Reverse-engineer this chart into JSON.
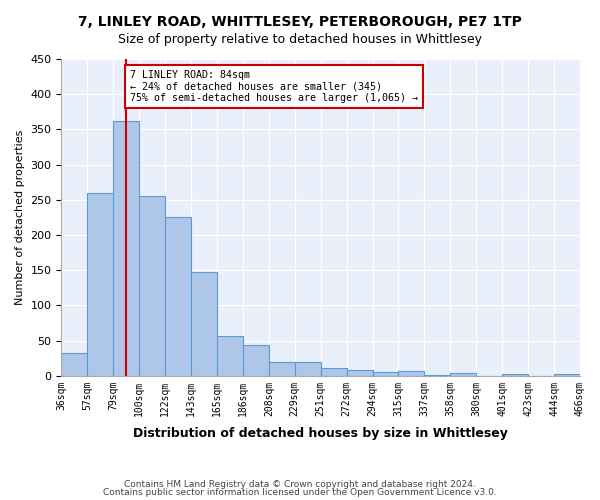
{
  "title1": "7, LINLEY ROAD, WHITTLESEY, PETERBOROUGH, PE7 1TP",
  "title2": "Size of property relative to detached houses in Whittlesey",
  "xlabel": "Distribution of detached houses by size in Whittlesey",
  "ylabel": "Number of detached properties",
  "bin_labels": [
    "36sqm",
    "57sqm",
    "79sqm",
    "100sqm",
    "122sqm",
    "143sqm",
    "165sqm",
    "186sqm",
    "208sqm",
    "229sqm",
    "251sqm",
    "272sqm",
    "294sqm",
    "315sqm",
    "337sqm",
    "358sqm",
    "380sqm",
    "401sqm",
    "423sqm",
    "444sqm",
    "466sqm"
  ],
  "bar_values": [
    32,
    260,
    362,
    255,
    225,
    148,
    57,
    44,
    19,
    19,
    11,
    8,
    6,
    7,
    1,
    4,
    0,
    3,
    0,
    3
  ],
  "bar_color": "#aec6e8",
  "bar_edge_color": "#5b9bd5",
  "vline_x": 2.5,
  "vline_color": "#cc0000",
  "annotation_text": "7 LINLEY ROAD: 84sqm\n← 24% of detached houses are smaller (345)\n75% of semi-detached houses are larger (1,065) →",
  "annotation_box_color": "#ffffff",
  "annotation_box_edge": "#cc0000",
  "ylim": [
    0,
    450
  ],
  "yticks": [
    0,
    50,
    100,
    150,
    200,
    250,
    300,
    350,
    400,
    450
  ],
  "footer1": "Contains HM Land Registry data © Crown copyright and database right 2024.",
  "footer2": "Contains public sector information licensed under the Open Government Licence v3.0.",
  "plot_bg_color": "#eaf0fb"
}
